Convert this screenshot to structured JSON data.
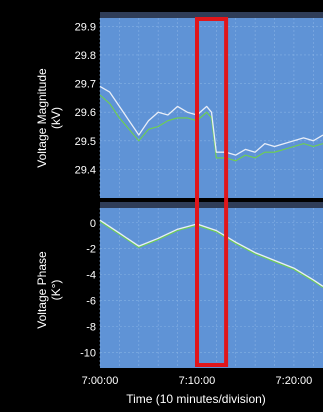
{
  "colors": {
    "background": "#000000",
    "plot_area": "#5f93d6",
    "plot_area_dark": "#4e82c8",
    "grid": "#8fb8e8",
    "panel_header": "#2f3d58",
    "series_magnitude_main": "#e8eef8",
    "series_magnitude_secondary": "#6fd24a",
    "series_phase_main": "#e8eef8",
    "series_phase_secondary": "#6fd24a",
    "highlight": "#e0161b",
    "text": "#ffffff"
  },
  "chart_data": [
    {
      "type": "line",
      "title": "",
      "xlabel": "",
      "ylabel_lines": [
        "Voltage Magnitude",
        "(kV)"
      ],
      "yticks": [
        "29.9",
        "29.8",
        "29.7",
        "29.6",
        "29.5",
        "29.4"
      ],
      "ylim": [
        29.3,
        29.95
      ],
      "xlim": [
        "7:00:00",
        "7:23:00"
      ],
      "grid": true,
      "series": [
        {
          "x": [
            "7:00:00",
            "7:01:00",
            "7:02:00",
            "7:03:00",
            "7:04:00",
            "7:05:00",
            "7:06:00",
            "7:07:00",
            "7:08:00",
            "7:09:00",
            "7:10:00",
            "7:11:00",
            "7:11:30",
            "7:12:00",
            "7:13:00",
            "7:14:00",
            "7:15:00",
            "7:16:00",
            "7:17:00",
            "7:18:00",
            "7:19:00",
            "7:20:00",
            "7:21:00",
            "7:22:00",
            "7:23:00"
          ],
          "y": [
            29.69,
            29.67,
            29.62,
            29.57,
            29.52,
            29.57,
            29.6,
            29.59,
            29.62,
            29.6,
            29.59,
            29.62,
            29.6,
            29.46,
            29.46,
            29.45,
            29.47,
            29.46,
            29.49,
            29.48,
            29.49,
            29.5,
            29.51,
            29.5,
            29.52
          ]
        },
        {
          "x": [
            "7:00:00",
            "7:01:00",
            "7:02:00",
            "7:03:00",
            "7:04:00",
            "7:05:00",
            "7:06:00",
            "7:07:00",
            "7:08:00",
            "7:09:00",
            "7:10:00",
            "7:11:00",
            "7:11:30",
            "7:12:00",
            "7:13:00",
            "7:14:00",
            "7:15:00",
            "7:16:00",
            "7:17:00",
            "7:18:00",
            "7:19:00",
            "7:20:00",
            "7:21:00",
            "7:22:00",
            "7:23:00"
          ],
          "y": [
            29.66,
            29.63,
            29.58,
            29.54,
            29.5,
            29.54,
            29.55,
            29.57,
            29.58,
            29.58,
            29.57,
            29.6,
            29.58,
            29.44,
            29.44,
            29.43,
            29.45,
            29.44,
            29.46,
            29.46,
            29.47,
            29.48,
            29.49,
            29.48,
            29.49
          ]
        }
      ]
    },
    {
      "type": "line",
      "title": "",
      "xlabel": "Time (10 minutes/division)",
      "ylabel_lines": [
        "Voltage Phase",
        "(K°)"
      ],
      "yticks": [
        "0",
        "-2",
        "-4",
        "-6",
        "-8",
        "-10"
      ],
      "ylim": [
        -11.2,
        1.6
      ],
      "xticks": [
        "7:00:00",
        "7:10:00",
        "7:20:00"
      ],
      "xlim": [
        "7:00:00",
        "7:23:00"
      ],
      "grid": true,
      "series": [
        {
          "x": [
            "7:00:00",
            "7:02:00",
            "7:04:00",
            "7:06:00",
            "7:08:00",
            "7:10:00",
            "7:12:00",
            "7:14:00",
            "7:16:00",
            "7:18:00",
            "7:20:00",
            "7:22:00",
            "7:23:00"
          ],
          "y": [
            0.2,
            -0.8,
            -1.8,
            -1.2,
            -0.5,
            -0.1,
            -0.6,
            -1.5,
            -2.3,
            -2.9,
            -3.5,
            -4.4,
            -4.9
          ]
        },
        {
          "x": [
            "7:00:00",
            "7:02:00",
            "7:04:00",
            "7:06:00",
            "7:08:00",
            "7:10:00",
            "7:12:00",
            "7:14:00",
            "7:16:00",
            "7:18:00",
            "7:20:00",
            "7:22:00",
            "7:23:00"
          ],
          "y": [
            0.1,
            -0.9,
            -1.9,
            -1.3,
            -0.6,
            -0.2,
            -0.7,
            -1.6,
            -2.4,
            -3.0,
            -3.6,
            -4.5,
            -5.0
          ]
        }
      ]
    }
  ],
  "highlight": {
    "x_start": "7:10:00",
    "x_end": "7:13:00"
  }
}
